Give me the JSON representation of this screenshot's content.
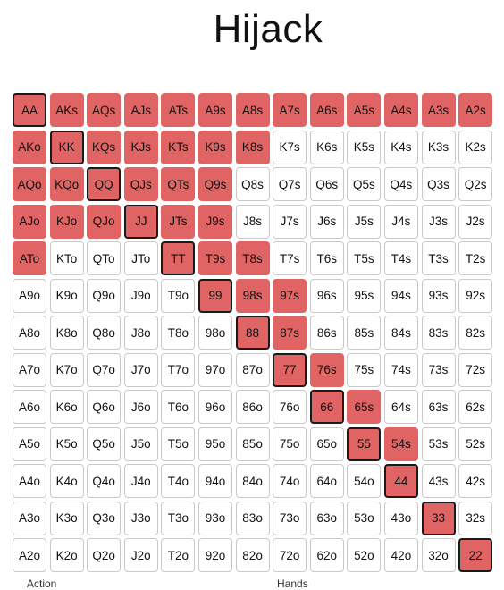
{
  "title": "Hijack",
  "colors": {
    "raise": "#e06464",
    "fold": "#ffffff",
    "pair_border": "#1a1a1a",
    "grid_border": "#c9c9c9"
  },
  "ranks": [
    "A",
    "K",
    "Q",
    "J",
    "T",
    "9",
    "8",
    "7",
    "6",
    "5",
    "4",
    "3",
    "2"
  ],
  "raise_range": [
    "AA",
    "AKs",
    "AQs",
    "AJs",
    "ATs",
    "A9s",
    "A8s",
    "A7s",
    "A6s",
    "A5s",
    "A4s",
    "A3s",
    "A2s",
    "AKo",
    "KK",
    "KQs",
    "KJs",
    "KTs",
    "K9s",
    "K8s",
    "AQo",
    "KQo",
    "QQ",
    "QJs",
    "QTs",
    "Q9s",
    "AJo",
    "KJo",
    "QJo",
    "JJ",
    "JTs",
    "J9s",
    "ATo",
    "TT",
    "T9s",
    "T8s",
    "99",
    "98s",
    "97s",
    "88",
    "87s",
    "77",
    "76s",
    "66",
    "65s",
    "55",
    "54s",
    "44",
    "33",
    "22"
  ],
  "footer": {
    "left": "Action",
    "right": "Hands"
  }
}
